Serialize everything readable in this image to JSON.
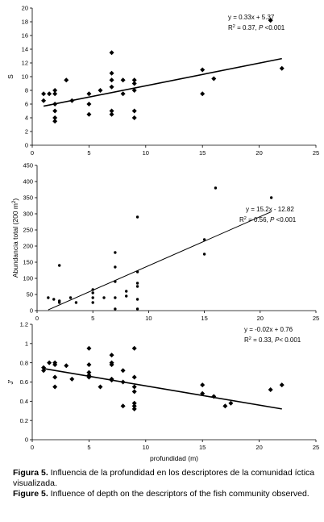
{
  "chart_data": [
    {
      "type": "scatter",
      "ylabel": "S",
      "xlabel": "",
      "xlim": [
        0,
        25
      ],
      "ylim": [
        0,
        20
      ],
      "xticks": [
        0,
        5,
        10,
        15,
        20,
        25
      ],
      "yticks": [
        0,
        2,
        4,
        6,
        8,
        10,
        12,
        14,
        16,
        18,
        20
      ],
      "points": [
        [
          1,
          7.5
        ],
        [
          1,
          6.5
        ],
        [
          1.5,
          7.5
        ],
        [
          2,
          8
        ],
        [
          2,
          7.5
        ],
        [
          2,
          6
        ],
        [
          2,
          5
        ],
        [
          2,
          4
        ],
        [
          2,
          3.5
        ],
        [
          3,
          9.5
        ],
        [
          3.5,
          6.5
        ],
        [
          5,
          7.5
        ],
        [
          5,
          6
        ],
        [
          5,
          4.5
        ],
        [
          6,
          8
        ],
        [
          7,
          13.5
        ],
        [
          7,
          10.5
        ],
        [
          7,
          9.5
        ],
        [
          7,
          5
        ],
        [
          7,
          4.5
        ],
        [
          7,
          8.5
        ],
        [
          8,
          9.5
        ],
        [
          8,
          7.5
        ],
        [
          9,
          9.5
        ],
        [
          9,
          9
        ],
        [
          9,
          8
        ],
        [
          9,
          5
        ],
        [
          9,
          4
        ],
        [
          15,
          11
        ],
        [
          15,
          7.5
        ],
        [
          16,
          9.7
        ],
        [
          21,
          18.2
        ],
        [
          22,
          11.2
        ]
      ],
      "trendline": {
        "slope": 0.33,
        "intercept": 5.37,
        "x_from": 1,
        "x_to": 22
      },
      "annotation_line1": "y = 0.33x + 5.37",
      "annotation_line2_lead": "R",
      "annotation_line2_sup": "2",
      "annotation_line2_rest": " = 0.37, ",
      "annotation_line2_p": "P",
      "annotation_line2_end": " <0.001"
    },
    {
      "type": "scatter",
      "ylabel": "Abundancia total  (200 m",
      "ylabel_sup": "2",
      "ylabel_end": ")",
      "xlabel": "",
      "xlim": [
        0,
        25
      ],
      "ylim": [
        0,
        450
      ],
      "xticks": [
        0,
        5,
        10,
        15,
        20,
        25
      ],
      "yticks": [
        0,
        50,
        100,
        150,
        200,
        250,
        300,
        350,
        400,
        450
      ],
      "points": [
        [
          1,
          40
        ],
        [
          1.5,
          35
        ],
        [
          2,
          140
        ],
        [
          2,
          30
        ],
        [
          2,
          25
        ],
        [
          3,
          40
        ],
        [
          3.5,
          25
        ],
        [
          5,
          65
        ],
        [
          5,
          55
        ],
        [
          5,
          40
        ],
        [
          5,
          25
        ],
        [
          6,
          40
        ],
        [
          7,
          180
        ],
        [
          7,
          135
        ],
        [
          7,
          90
        ],
        [
          7,
          40
        ],
        [
          7,
          5
        ],
        [
          8,
          60
        ],
        [
          8,
          45
        ],
        [
          9,
          290
        ],
        [
          9,
          120
        ],
        [
          9,
          85
        ],
        [
          9,
          75
        ],
        [
          9,
          35
        ],
        [
          9,
          5
        ],
        [
          15,
          220
        ],
        [
          15,
          175
        ],
        [
          16,
          380
        ],
        [
          21,
          350
        ]
      ],
      "trendline": {
        "slope": 15.2,
        "intercept": -12.82,
        "x_from": 1,
        "x_to": 21
      },
      "annotation_line1": "y = 15.2x - 12.82",
      "annotation_line2_lead": "R",
      "annotation_line2_sup": "2",
      "annotation_line2_rest": " = 0.56, ",
      "annotation_line2_p": "P",
      "annotation_line2_end": " <0.001"
    },
    {
      "type": "scatter",
      "ylabel": "J'",
      "xlabel": "profundidad (m)",
      "xlim": [
        0,
        25
      ],
      "ylim": [
        0,
        1.2
      ],
      "xticks": [
        0,
        5,
        10,
        15,
        20,
        25
      ],
      "yticks": [
        0,
        0.2,
        0.4,
        0.6,
        0.8,
        1,
        1.2
      ],
      "points": [
        [
          1,
          0.75
        ],
        [
          1,
          0.72
        ],
        [
          1.5,
          0.8
        ],
        [
          2,
          0.8
        ],
        [
          2,
          0.78
        ],
        [
          2,
          0.65
        ],
        [
          2,
          0.55
        ],
        [
          3,
          0.77
        ],
        [
          3.5,
          0.63
        ],
        [
          5,
          0.95
        ],
        [
          5,
          0.78
        ],
        [
          5,
          0.7
        ],
        [
          5,
          0.67
        ],
        [
          5,
          0.65
        ],
        [
          6,
          0.55
        ],
        [
          7,
          0.88
        ],
        [
          7,
          0.8
        ],
        [
          7,
          0.78
        ],
        [
          7,
          0.63
        ],
        [
          7,
          0.62
        ],
        [
          8,
          0.72
        ],
        [
          8,
          0.35
        ],
        [
          8,
          0.6
        ],
        [
          9,
          0.95
        ],
        [
          9,
          0.65
        ],
        [
          9,
          0.55
        ],
        [
          9,
          0.5
        ],
        [
          9,
          0.38
        ],
        [
          9,
          0.35
        ],
        [
          9,
          0.32
        ],
        [
          15,
          0.57
        ],
        [
          15,
          0.48
        ],
        [
          16,
          0.45
        ],
        [
          17,
          0.35
        ],
        [
          17.5,
          0.38
        ],
        [
          21,
          0.52
        ],
        [
          22,
          0.57
        ]
      ],
      "trendline": {
        "slope": -0.02,
        "intercept": 0.76,
        "x_from": 1,
        "x_to": 22
      },
      "annotation_line1": "y = -0.02x + 0.76",
      "annotation_line2_lead": "R",
      "annotation_line2_sup": "2",
      "annotation_line2_rest": " = 0.33, ",
      "annotation_line2_p": "P",
      "annotation_line2_end": "< 0.001"
    }
  ],
  "caption": {
    "es_label": "Figura 5.",
    "es_text": " Influencia de la profundidad en los descriptores de la comunidad íctica visualizada.",
    "en_label": "Figure 5.",
    "en_text": " Influence of depth on the descriptors of the fish community observed."
  }
}
